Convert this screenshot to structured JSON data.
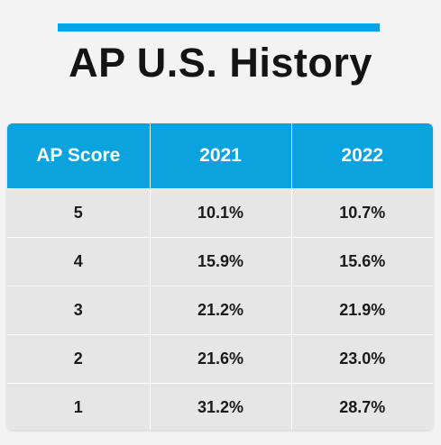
{
  "title": "AP U.S. History",
  "colors": {
    "accent": "#0aa3de",
    "header_text": "#ffffff",
    "cell_bg": "#e6e6e6",
    "page_bg": "#f3f3f3",
    "title_text": "#141414"
  },
  "chart_data": {
    "type": "table",
    "columns": [
      "AP Score",
      "2021",
      "2022"
    ],
    "rows": [
      [
        "5",
        "10.1%",
        "10.7%"
      ],
      [
        "4",
        "15.9%",
        "15.6%"
      ],
      [
        "3",
        "21.2%",
        "21.9%"
      ],
      [
        "2",
        "21.6%",
        "23.0%"
      ],
      [
        "1",
        "31.2%",
        "28.7%"
      ]
    ]
  }
}
